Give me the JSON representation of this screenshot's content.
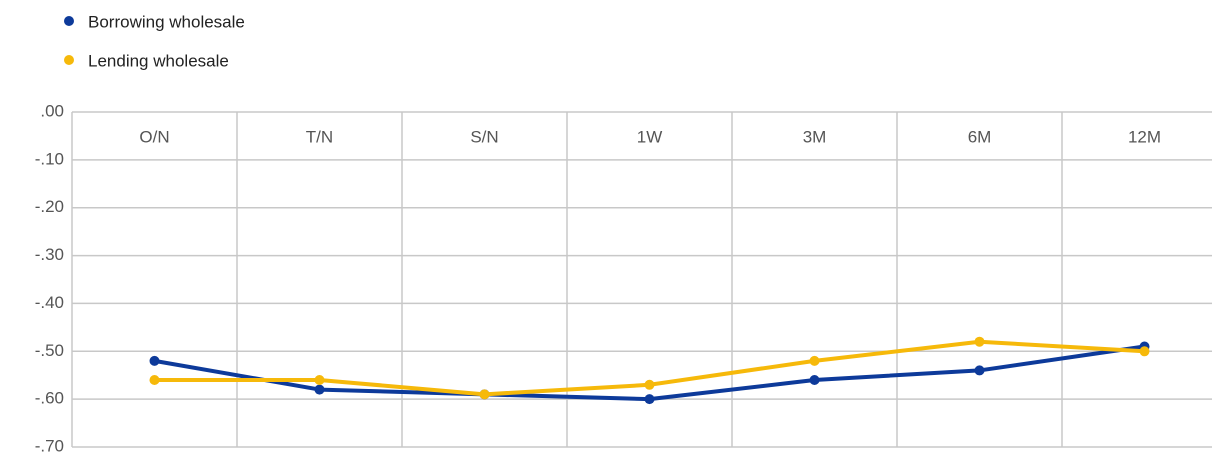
{
  "chart_data": {
    "type": "line",
    "categories": [
      "O/N",
      "T/N",
      "S/N",
      "1W",
      "3M",
      "6M",
      "12M"
    ],
    "series": [
      {
        "name": "Borrowing wholesale",
        "color": "#0d3a9a",
        "values": [
          -0.52,
          -0.58,
          -0.59,
          -0.6,
          -0.56,
          -0.54,
          -0.49
        ]
      },
      {
        "name": "Lending wholesale",
        "color": "#f6b90a",
        "values": [
          -0.56,
          -0.56,
          -0.59,
          -0.57,
          -0.52,
          -0.48,
          -0.5
        ]
      }
    ],
    "ylim": [
      -0.7,
      0
    ],
    "yticks": [
      {
        "value": 0,
        "label": ".00"
      },
      {
        "value": -0.1,
        "label": "-.10"
      },
      {
        "value": -0.2,
        "label": "-.20"
      },
      {
        "value": -0.3,
        "label": "-.30"
      },
      {
        "value": -0.4,
        "label": "-.40"
      },
      {
        "value": -0.5,
        "label": "-.50"
      },
      {
        "value": -0.6,
        "label": "-.60"
      },
      {
        "value": -0.7,
        "label": "-.70"
      }
    ],
    "grid": true,
    "legend": "top-left"
  }
}
